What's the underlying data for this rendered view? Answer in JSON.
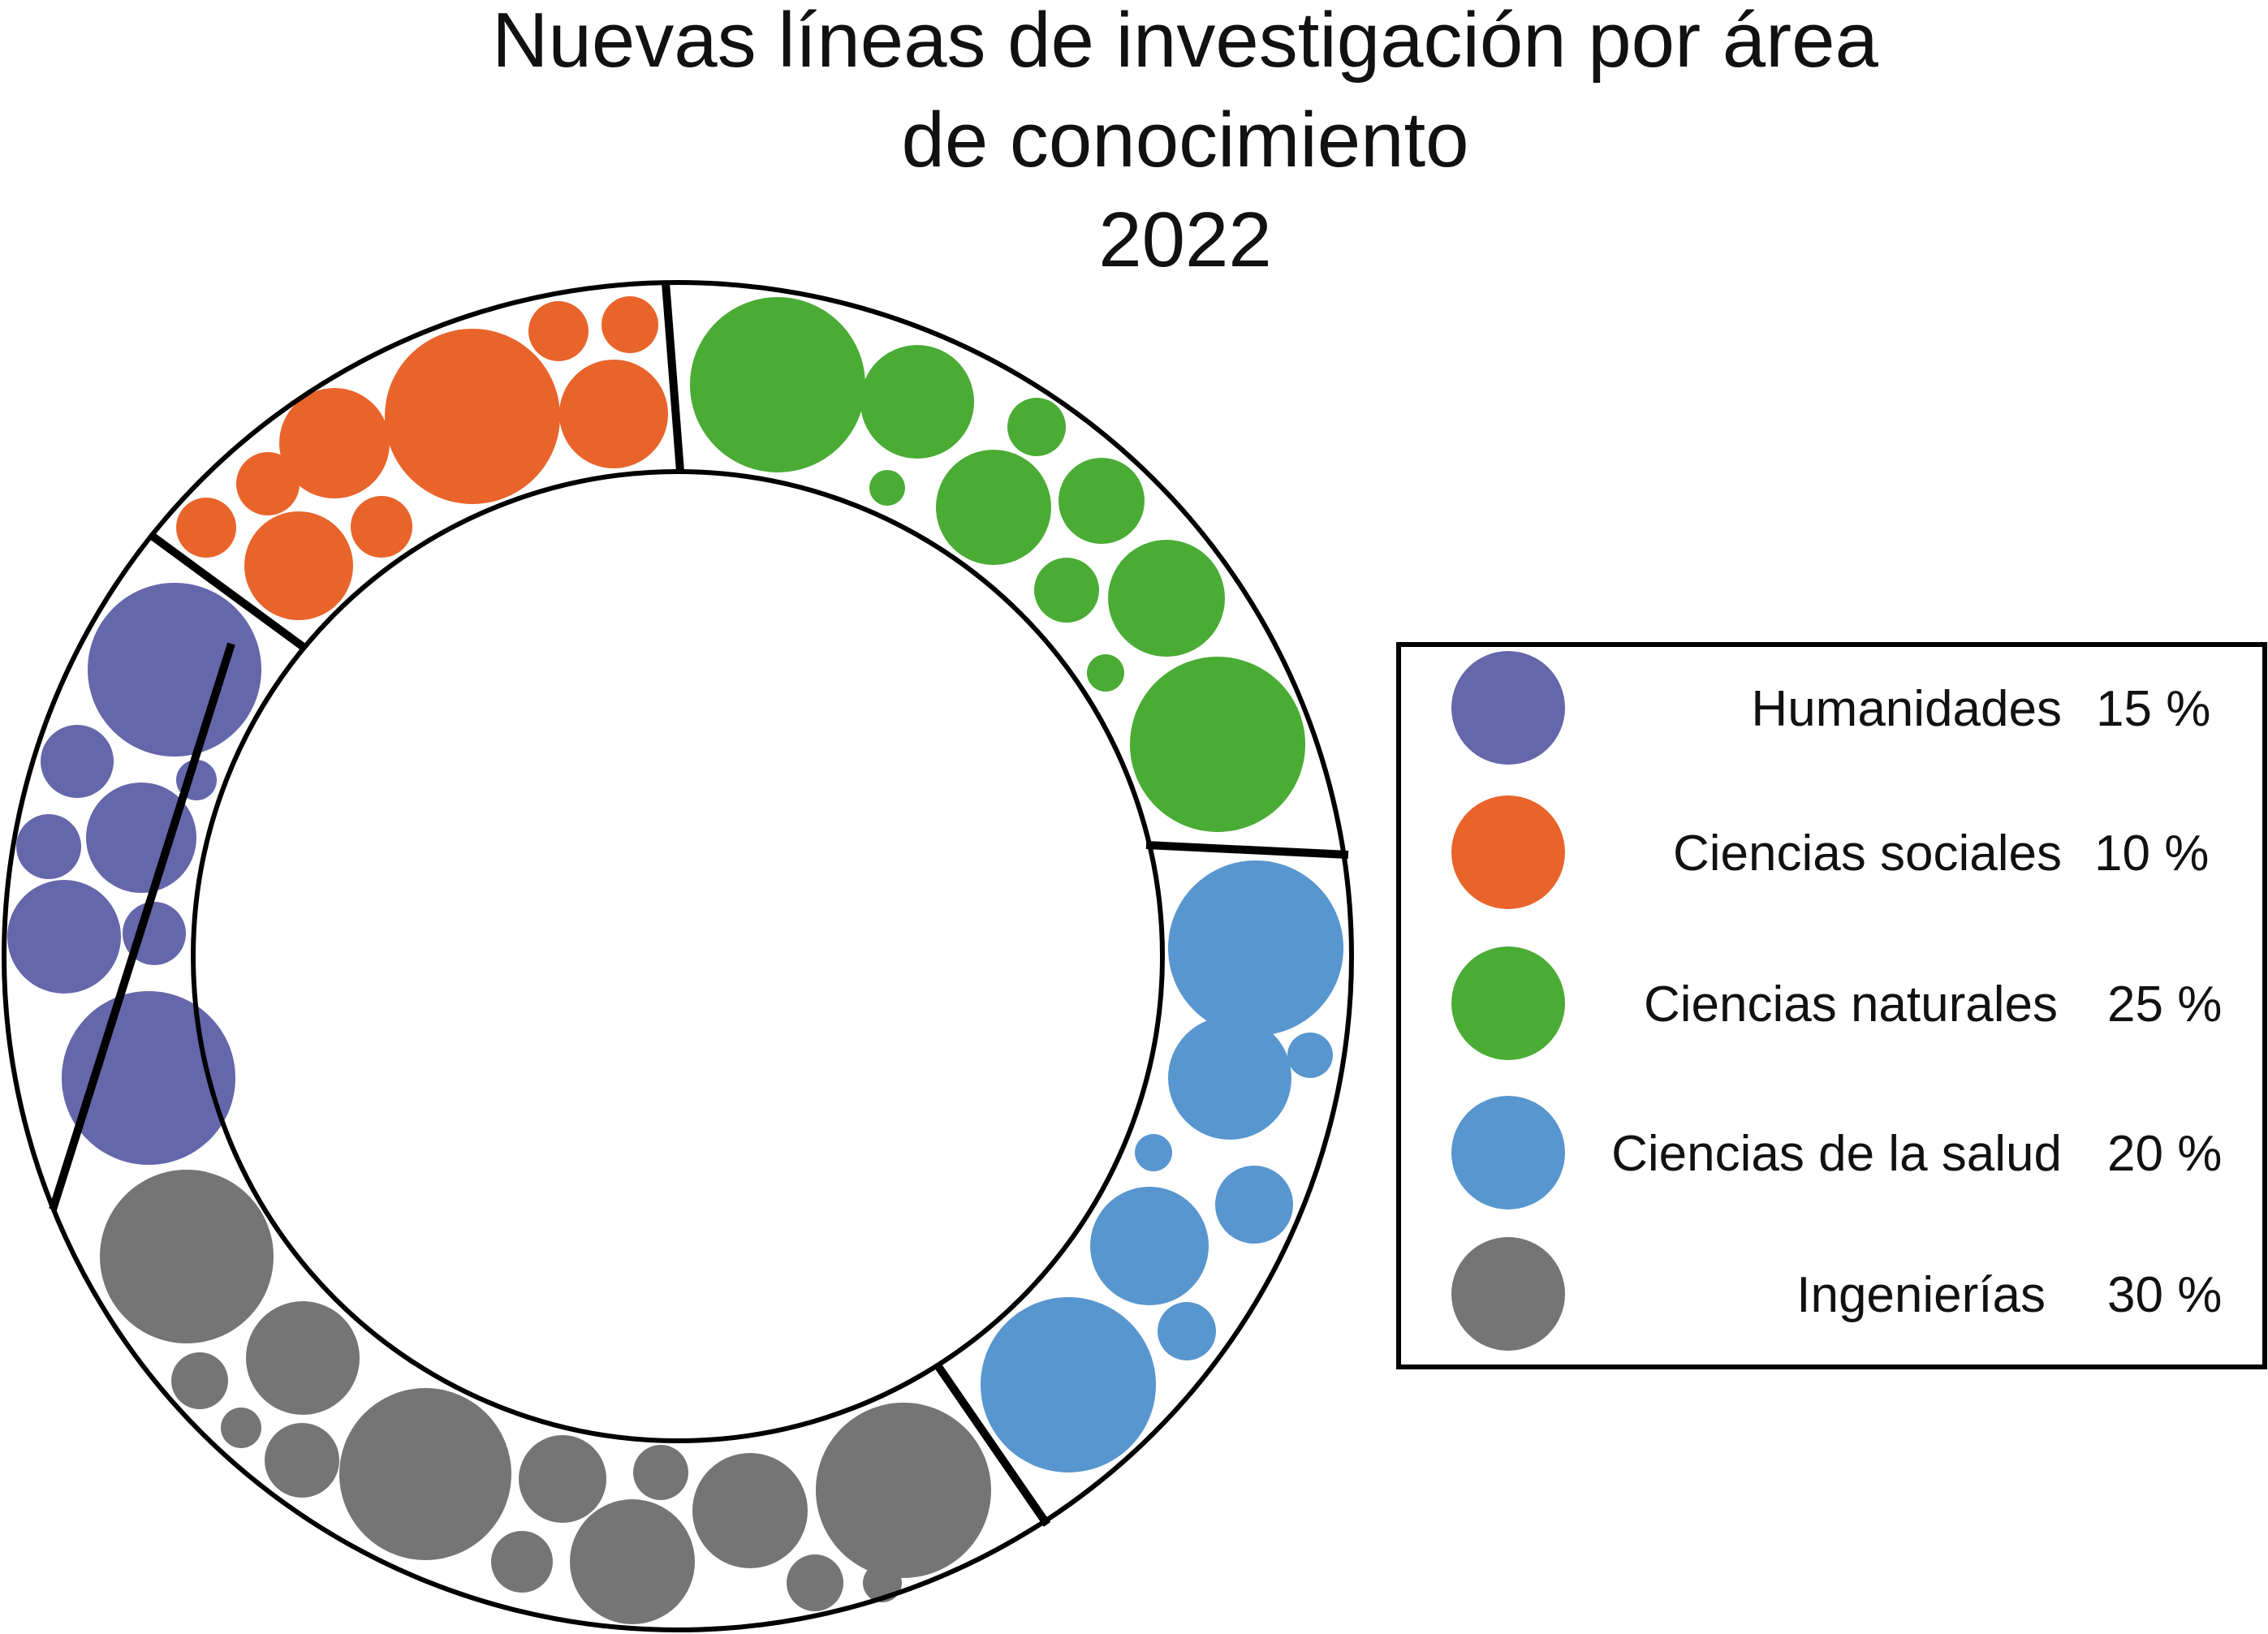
{
  "chart_data": {
    "type": "pie",
    "title_lines": [
      "Nuevas líneas de investigación por área",
      "de conocimiento",
      "2022"
    ],
    "categories": [
      "Humanidades",
      "Ciencias sociales",
      "Ciencias naturales",
      "Ciencias de la salud",
      "Ingenierías"
    ],
    "values": [
      15,
      10,
      25,
      20,
      30
    ],
    "value_labels": [
      "15 %",
      "10 %",
      "25 %",
      "20 %",
      "30 %"
    ],
    "colors": [
      "#6567ab",
      "#e9642b",
      "#4aac34",
      "#5896cf",
      "#757575"
    ],
    "legend_position": "right",
    "style": "donut ring filled with circles"
  }
}
